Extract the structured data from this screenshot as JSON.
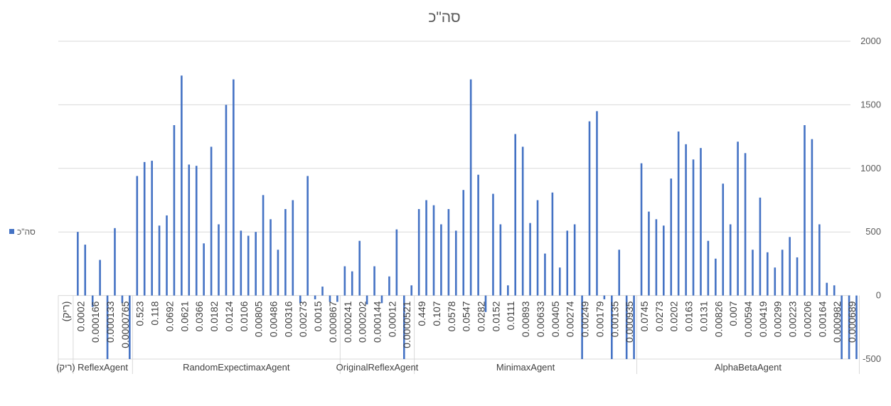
{
  "chart_data": {
    "type": "bar",
    "title": "סה\"כ",
    "xlabel": "",
    "ylabel": "",
    "ylim": [
      -500,
      2000
    ],
    "yticks": [
      -500,
      0,
      500,
      1000,
      1500,
      2000
    ],
    "grid": true,
    "legend": "left",
    "color": "#4472C4",
    "series": [
      {
        "name": "סה\"כ"
      }
    ],
    "groups": [
      {
        "label": "(ריק)",
        "items": [
          {
            "x": "(ריק)",
            "values": []
          }
        ]
      },
      {
        "label": "ReflexAgent",
        "items": [
          {
            "x": "0.0002",
            "values": [
              500,
              400
            ]
          },
          {
            "x": "0.000166",
            "values": [
              -90,
              280
            ]
          },
          {
            "x": "0.000133",
            "values": [
              -500,
              530
            ]
          },
          {
            "x": "0.0000765",
            "values": [
              -60,
              -500
            ]
          }
        ]
      },
      {
        "label": "RandomExpectimaxAgent",
        "items": [
          {
            "x": "0.523",
            "values": [
              940,
              1050
            ]
          },
          {
            "x": "0.118",
            "values": [
              1060,
              550
            ]
          },
          {
            "x": "0.0692",
            "values": [
              630,
              1340
            ]
          },
          {
            "x": "0.0621",
            "values": [
              1730,
              1030
            ]
          },
          {
            "x": "0.0366",
            "values": [
              1020,
              410
            ]
          },
          {
            "x": "0.0182",
            "values": [
              1170,
              560
            ]
          },
          {
            "x": "0.0124",
            "values": [
              1500,
              1700
            ]
          },
          {
            "x": "0.0106",
            "values": [
              510,
              470
            ]
          },
          {
            "x": "0.00805",
            "values": [
              500,
              790
            ]
          },
          {
            "x": "0.00486",
            "values": [
              600,
              360
            ]
          },
          {
            "x": "0.00316",
            "values": [
              680,
              750
            ]
          },
          {
            "x": "0.00273",
            "values": [
              -60,
              940
            ]
          },
          {
            "x": "0.0015",
            "values": [
              -30,
              70
            ]
          },
          {
            "x": "0.000867",
            "values": [
              -50,
              -50
            ]
          }
        ]
      },
      {
        "label": "OriginalReflexAgent",
        "items": [
          {
            "x": "0.000241",
            "values": [
              230,
              190
            ]
          },
          {
            "x": "0.000202",
            "values": [
              430,
              -70
            ]
          },
          {
            "x": "0.000144",
            "values": [
              230,
              -60
            ]
          },
          {
            "x": "0.00012",
            "values": [
              150,
              520
            ]
          },
          {
            "x": "0.0000521",
            "values": [
              -500,
              80
            ]
          }
        ]
      },
      {
        "label": "MinimaxAgent",
        "items": [
          {
            "x": "0.449",
            "values": [
              680,
              750
            ]
          },
          {
            "x": "0.107",
            "values": [
              710,
              560
            ]
          },
          {
            "x": "0.0578",
            "values": [
              680,
              510
            ]
          },
          {
            "x": "0.0547",
            "values": [
              830,
              1700
            ]
          },
          {
            "x": "0.0282",
            "values": [
              950,
              -130
            ]
          },
          {
            "x": "0.0152",
            "values": [
              800,
              560
            ]
          },
          {
            "x": "0.0111",
            "values": [
              80,
              1270
            ]
          },
          {
            "x": "0.00893",
            "values": [
              1170,
              570
            ]
          },
          {
            "x": "0.00633",
            "values": [
              750,
              330
            ]
          },
          {
            "x": "0.00405",
            "values": [
              810,
              220
            ]
          },
          {
            "x": "0.00274",
            "values": [
              510,
              560
            ]
          },
          {
            "x": "0.00249",
            "values": [
              -500,
              1370
            ]
          },
          {
            "x": "0.00179",
            "values": [
              1450,
              -30
            ]
          },
          {
            "x": "0.00135",
            "values": [
              -500,
              360
            ]
          },
          {
            "x": "0.000935",
            "values": [
              -500,
              -500
            ]
          }
        ]
      },
      {
        "label": "AlphaBetaAgent",
        "items": [
          {
            "x": "0.0745",
            "values": [
              1040,
              660
            ]
          },
          {
            "x": "0.0273",
            "values": [
              600,
              550
            ]
          },
          {
            "x": "0.0202",
            "values": [
              920,
              1290
            ]
          },
          {
            "x": "0.0163",
            "values": [
              1190,
              1070
            ]
          },
          {
            "x": "0.0131",
            "values": [
              1160,
              430
            ]
          },
          {
            "x": "0.00826",
            "values": [
              290,
              880
            ]
          },
          {
            "x": "0.007",
            "values": [
              560,
              1210
            ]
          },
          {
            "x": "0.00594",
            "values": [
              1120,
              360
            ]
          },
          {
            "x": "0.00419",
            "values": [
              770,
              340
            ]
          },
          {
            "x": "0.00299",
            "values": [
              220,
              360
            ]
          },
          {
            "x": "0.00223",
            "values": [
              460,
              300
            ]
          },
          {
            "x": "0.00206",
            "values": [
              1340,
              1230
            ]
          },
          {
            "x": "0.00164",
            "values": [
              560,
              100
            ]
          },
          {
            "x": "0.000982",
            "values": [
              80,
              -500
            ]
          },
          {
            "x": "0.000689",
            "values": [
              -500,
              -500
            ]
          }
        ]
      }
    ]
  }
}
